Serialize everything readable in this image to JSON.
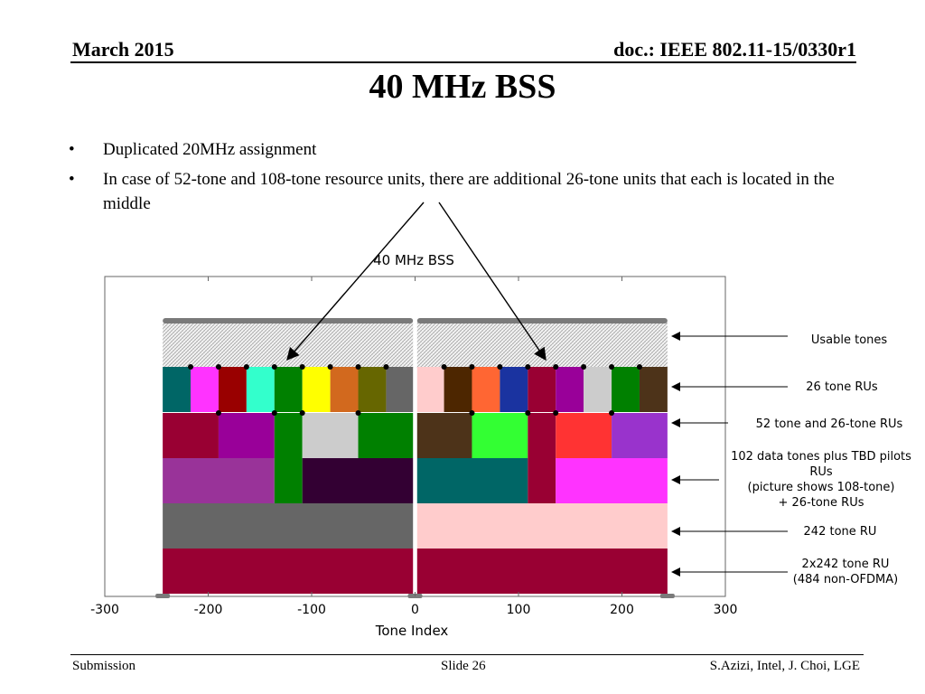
{
  "header": {
    "date": "March 2015",
    "doc": "doc.: IEEE 802.11-15/0330r1"
  },
  "title": "40 MHz BSS",
  "bullets": [
    "Duplicated 20MHz assignment",
    "In case of 52-tone and 108-tone resource units, there are additional 26-tone units that each is located in the middle"
  ],
  "chart_data": {
    "type": "diagram",
    "title": "40 MHz BSS",
    "xlabel": "Tone Index",
    "xlim": [
      -300,
      300
    ],
    "xticks": [
      "-300",
      "-200",
      "-100",
      "0",
      "100",
      "200",
      "300"
    ],
    "edge_tones": [
      -244,
      244
    ],
    "rows": [
      {
        "name": "Usable tones",
        "pattern": "hatched",
        "segments": [
          [
            -244,
            -2
          ],
          [
            2,
            244
          ]
        ]
      },
      {
        "name": "26 tone RUs",
        "segments": [
          [
            -244,
            -217,
            "#006666"
          ],
          [
            -217,
            -190,
            "#ff33ff"
          ],
          [
            -190,
            -163,
            "#990000"
          ],
          [
            -163,
            -136,
            "#33ffcc"
          ],
          [
            -136,
            -109,
            "#008000"
          ],
          [
            -109,
            -82,
            "#ffff00"
          ],
          [
            -82,
            -55,
            "#d2691e"
          ],
          [
            -55,
            -28,
            "#666600"
          ],
          [
            -28,
            -2,
            "#666666"
          ],
          [
            2,
            28,
            "#ffcccc"
          ],
          [
            28,
            55,
            "#4d2600"
          ],
          [
            55,
            82,
            "#ff6633"
          ],
          [
            82,
            109,
            "#1a33a0"
          ],
          [
            109,
            136,
            "#990033"
          ],
          [
            136,
            163,
            "#990099"
          ],
          [
            163,
            190,
            "#cccccc"
          ],
          [
            190,
            217,
            "#008000"
          ],
          [
            217,
            244,
            "#4d3319"
          ]
        ]
      },
      {
        "name": "52 tone and 26-tone RUs",
        "segments": [
          [
            -244,
            -190,
            "#990033"
          ],
          [
            -190,
            -136,
            "#990099"
          ],
          [
            -136,
            -109,
            "#008000"
          ],
          [
            -109,
            -55,
            "#cccccc"
          ],
          [
            -55,
            -2,
            "#008000"
          ],
          [
            2,
            55,
            "#4d3319"
          ],
          [
            55,
            109,
            "#33ff33"
          ],
          [
            109,
            136,
            "#990033"
          ],
          [
            136,
            190,
            "#ff3333"
          ],
          [
            190,
            244,
            "#9933cc"
          ]
        ]
      },
      {
        "name": "102 data tones plus TBD pilots RUs (picture shows 108-tone) + 26-tone RUs",
        "segments": [
          [
            -244,
            -136,
            "#993399"
          ],
          [
            -136,
            -109,
            "#008000"
          ],
          [
            -109,
            -2,
            "#330033"
          ],
          [
            2,
            109,
            "#006666"
          ],
          [
            109,
            136,
            "#990033"
          ],
          [
            136,
            244,
            "#ff33ff"
          ]
        ]
      },
      {
        "name": "242 tone RU",
        "segments": [
          [
            -244,
            -2,
            "#666666"
          ],
          [
            2,
            244,
            "#ffcccc"
          ]
        ]
      },
      {
        "name": "2x242 tone RU (484 non-OFDMA)",
        "segments": [
          [
            -244,
            -2,
            "#990033"
          ],
          [
            2,
            244,
            "#990033"
          ]
        ]
      }
    ]
  },
  "labels": {
    "usable": "Usable tones",
    "ru26": "26 tone RUs",
    "ru52": "52 tone and 26-tone RUs",
    "ru102_l1": "102 data tones plus TBD pilots",
    "ru102_l2": "RUs",
    "ru102_l3": "(picture shows 108-tone)",
    "ru102_l4": "+ 26-tone RUs",
    "ru242": "242 tone RU",
    "ru484_l1": "2x242 tone RU",
    "ru484_l2": "(484 non-OFDMA)"
  },
  "footer": {
    "left": "Submission",
    "mid": "Slide 26",
    "right": "S.Azizi, Intel, J. Choi, LGE"
  }
}
